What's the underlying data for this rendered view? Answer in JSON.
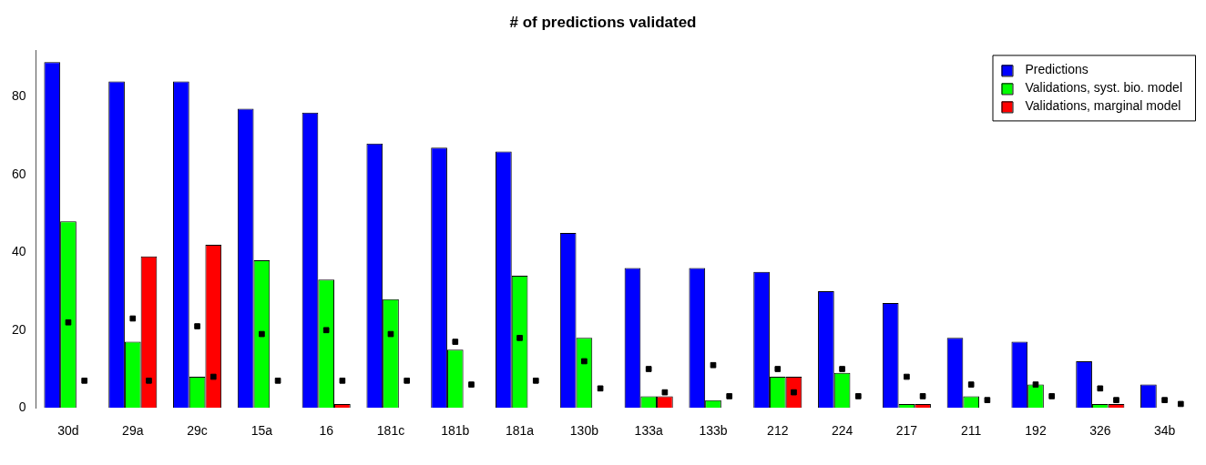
{
  "chart_data": {
    "type": "bar",
    "title": "# of predictions validated",
    "categories": [
      "30d",
      "29a",
      "29c",
      "15a",
      "16",
      "181c",
      "181b",
      "181a",
      "130b",
      "133a",
      "133b",
      "212",
      "224",
      "217",
      "211",
      "192",
      "326",
      "34b"
    ],
    "series": [
      {
        "name": "Predictions",
        "color": "#0000ff",
        "values": [
          89,
          84,
          84,
          77,
          76,
          68,
          67,
          66,
          45,
          36,
          36,
          35,
          30,
          27,
          18,
          17,
          12,
          6
        ]
      },
      {
        "name": "Validations, syst. bio. model",
        "color": "#00ff00",
        "values": [
          48,
          17,
          8,
          38,
          33,
          28,
          15,
          34,
          18,
          3,
          2,
          8,
          9,
          1,
          3,
          6,
          1,
          0
        ]
      },
      {
        "name": "Validations, marginal model",
        "color": "#ff0000",
        "values": [
          0,
          39,
          42,
          0,
          1,
          0,
          0,
          0,
          0,
          3,
          0,
          8,
          0,
          1,
          0,
          0,
          1,
          0
        ]
      },
      {
        "type": "scatter",
        "color": "#000000",
        "x": [
          "30d",
          "29a",
          "29c",
          "15a",
          "16",
          "181c",
          "181b",
          "181a",
          "130b",
          "133a",
          "133b",
          "212",
          "224",
          "217",
          "211",
          "192",
          "326",
          "34b"
        ],
        "values": [
          22,
          23,
          21,
          19,
          20,
          19,
          17,
          18,
          12,
          10,
          11,
          10,
          10,
          8,
          6,
          6,
          5,
          2
        ]
      },
      {
        "type": "scatter",
        "color": "#000000",
        "x": [
          "30d",
          "29a",
          "29c",
          "15a",
          "16",
          "181c",
          "181b",
          "181a",
          "130b",
          "133a",
          "133b",
          "212",
          "224",
          "217",
          "211",
          "192",
          "326",
          "34b"
        ],
        "values": [
          7,
          7,
          8,
          7,
          7,
          7,
          6,
          7,
          5,
          4,
          3,
          4,
          3,
          3,
          2,
          3,
          2,
          1
        ]
      }
    ],
    "marker": "square",
    "ylim": [
      0,
      92
    ],
    "yticks": [
      0,
      20,
      40,
      60,
      80
    ],
    "grid": false,
    "legend": "top right"
  }
}
